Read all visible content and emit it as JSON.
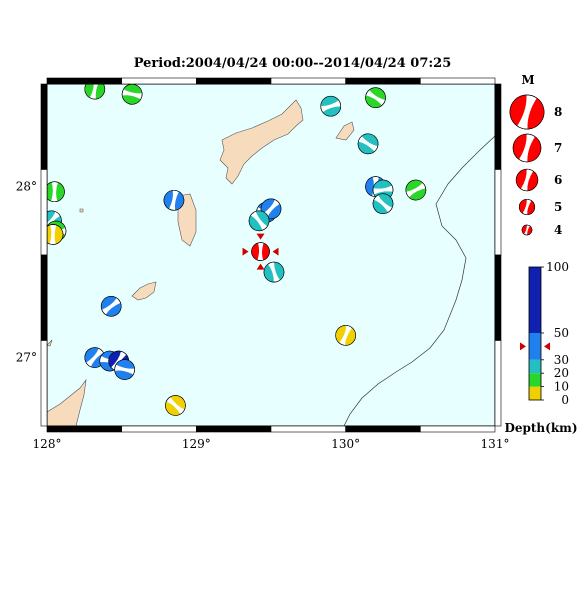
{
  "title": "Period:2004/04/24 00:00--2014/04/24 07:25",
  "map": {
    "lon_range": [
      128,
      131
    ],
    "lat_range": [
      26.6,
      28.6
    ],
    "lon_ticks": [
      "128°",
      "129°",
      "130°",
      "131°"
    ],
    "lat_ticks": [
      "28°",
      "27°"
    ],
    "sea_color": "#e8ffff",
    "land_color": "#f6dcbc"
  },
  "magnitude_legend": {
    "title": "M",
    "items": [
      {
        "m": 8,
        "label": "8"
      },
      {
        "m": 7,
        "label": "7"
      },
      {
        "m": 6,
        "label": "6"
      },
      {
        "m": 5,
        "label": "5"
      },
      {
        "m": 4,
        "label": "4"
      }
    ]
  },
  "depth_scale": {
    "title": "Depth(km)",
    "labels": [
      "100",
      "50",
      "30",
      "20",
      "10",
      "0"
    ],
    "bands": [
      {
        "from": 0,
        "to": 10,
        "color": "#f0d000"
      },
      {
        "from": 10,
        "to": 20,
        "color": "#2ad62a"
      },
      {
        "from": 20,
        "to": 30,
        "color": "#22c0c0"
      },
      {
        "from": 30,
        "to": 50,
        "color": "#2080ee"
      },
      {
        "from": 50,
        "to": 100,
        "color": "#1020b0"
      }
    ],
    "current_depth": 40
  },
  "events": [
    {
      "lon": 128.32,
      "lat": 28.57,
      "color": "#2ad62a",
      "rot": 30
    },
    {
      "lon": 128.57,
      "lat": 28.54,
      "color": "#2ad62a",
      "rot": 120
    },
    {
      "lon": 129.9,
      "lat": 28.47,
      "color": "#22c0c0",
      "rot": 90
    },
    {
      "lon": 130.2,
      "lat": 28.52,
      "color": "#2ad62a",
      "rot": 320
    },
    {
      "lon": 130.15,
      "lat": 28.25,
      "color": "#22c0c0",
      "rot": 140
    },
    {
      "lon": 130.2,
      "lat": 28.0,
      "color": "#2080ee",
      "rot": 200
    },
    {
      "lon": 130.25,
      "lat": 27.98,
      "color": "#22c0c0",
      "rot": 100
    },
    {
      "lon": 130.25,
      "lat": 27.9,
      "color": "#22c0c0",
      "rot": 150
    },
    {
      "lon": 130.47,
      "lat": 27.98,
      "color": "#2ad62a",
      "rot": 80
    },
    {
      "lon": 128.05,
      "lat": 27.97,
      "color": "#2ad62a",
      "rot": 20
    },
    {
      "lon": 128.03,
      "lat": 27.8,
      "color": "#22c0c0",
      "rot": 60
    },
    {
      "lon": 128.06,
      "lat": 27.74,
      "color": "#2ad62a",
      "rot": 110
    },
    {
      "lon": 128.04,
      "lat": 27.72,
      "color": "#f0d000",
      "rot": 200
    },
    {
      "lon": 128.85,
      "lat": 27.92,
      "color": "#2080ee",
      "rot": 30
    },
    {
      "lon": 129.47,
      "lat": 27.85,
      "color": "#2080ee",
      "rot": 300
    },
    {
      "lon": 129.5,
      "lat": 27.87,
      "color": "#2080ee",
      "rot": 60
    },
    {
      "lon": 129.42,
      "lat": 27.8,
      "color": "#22c0c0",
      "rot": 160
    },
    {
      "lon": 129.52,
      "lat": 27.5,
      "color": "#22c0c0",
      "rot": 180
    },
    {
      "lon": 128.43,
      "lat": 27.3,
      "color": "#2080ee",
      "rot": 70
    },
    {
      "lon": 128.32,
      "lat": 27.0,
      "color": "#2080ee",
      "rot": 240
    },
    {
      "lon": 128.42,
      "lat": 26.98,
      "color": "#2080ee",
      "rot": 120
    },
    {
      "lon": 128.48,
      "lat": 26.98,
      "color": "#1020b0",
      "rot": 50
    },
    {
      "lon": 128.52,
      "lat": 26.93,
      "color": "#2080ee",
      "rot": 300
    },
    {
      "lon": 130.0,
      "lat": 27.13,
      "color": "#f0d000",
      "rot": 40
    },
    {
      "lon": 128.86,
      "lat": 26.72,
      "color": "#f0d000",
      "rot": 330
    }
  ],
  "current_event": {
    "lon": 129.43,
    "lat": 27.62,
    "color": "#ff0000"
  }
}
